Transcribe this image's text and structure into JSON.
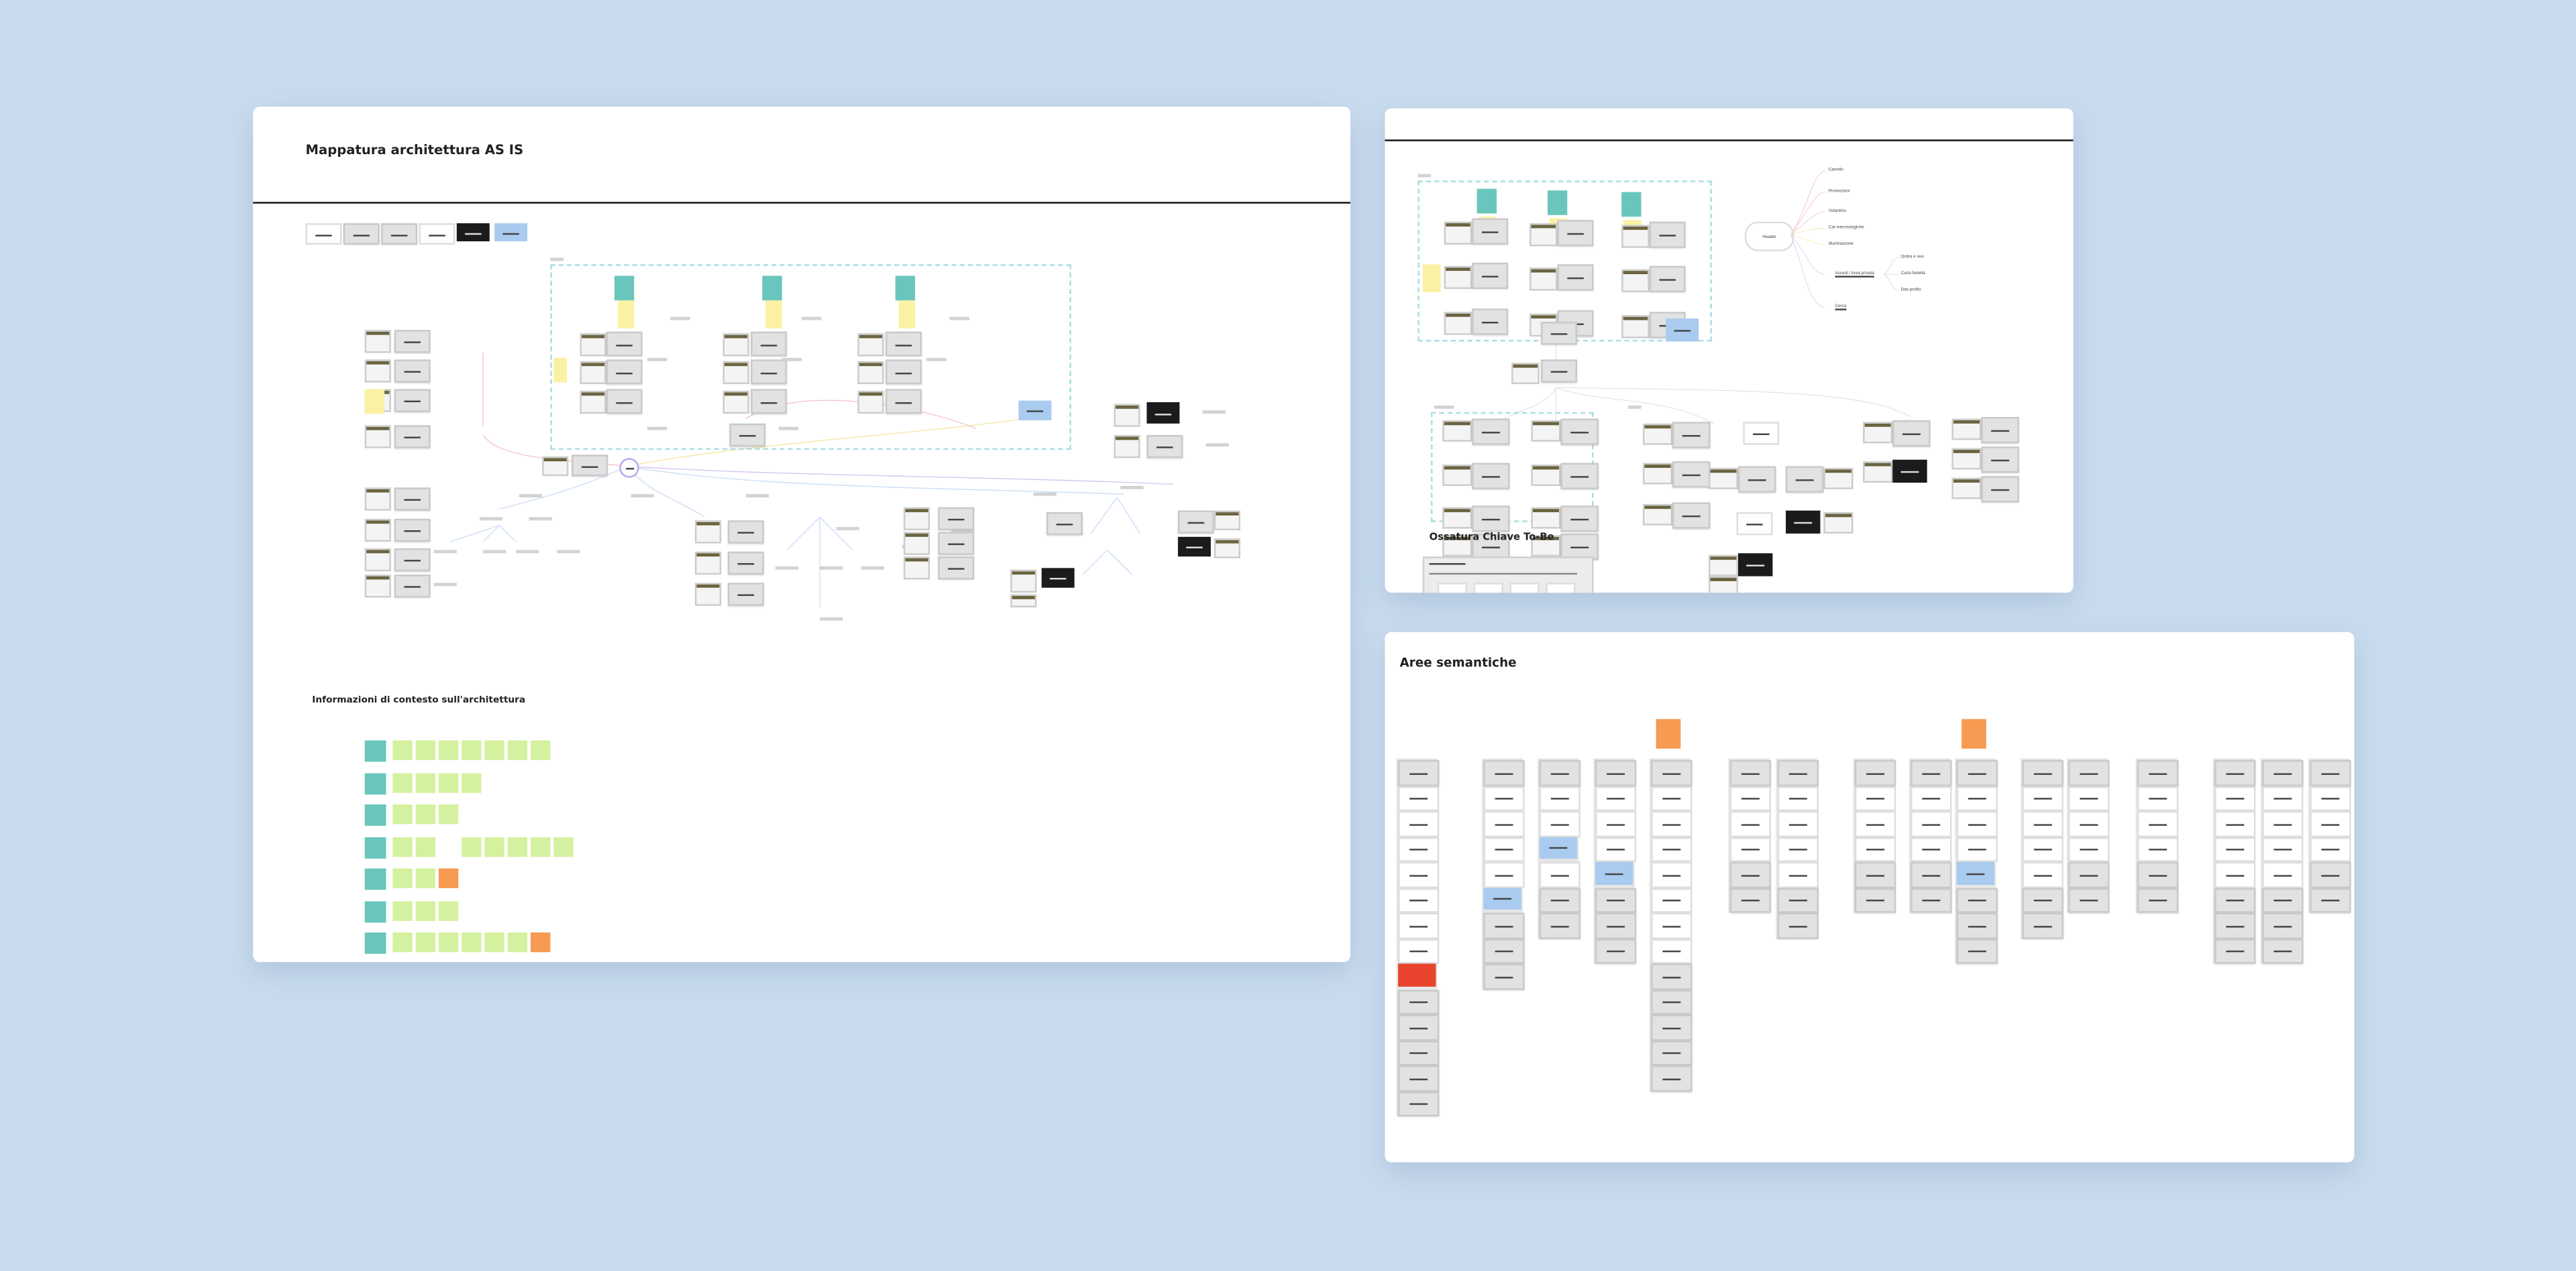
{
  "board_as_is": {
    "title": "Mappatura architettura AS IS",
    "context_title": "Informazioni di contesto sull'architettura"
  },
  "board_to_be": {
    "header_mindmap": {
      "root": "Header",
      "items": [
        "Carrello",
        "Promozioni",
        "Volantino",
        "Cat merceologiche",
        "Illuminazione"
      ],
      "account": "Accedi / Area privata",
      "account_children": [
        "Ordini e resi",
        "Carta fedeltà",
        "Dati profilo"
      ],
      "search": "Cerca"
    },
    "section_title": "Ossatura Chiave To-Be"
  },
  "board_semantic": {
    "title": "Aree semantiche"
  },
  "colors": {
    "background": "#c9dcef",
    "sticky_teal": "#6ac6bd",
    "sticky_green": "#d4f1a0",
    "sticky_yellow": "#fbf1a4",
    "sticky_orange": "#f79a52",
    "highlight_blue": "#a9cbef",
    "highlight_red": "#e8432c"
  }
}
